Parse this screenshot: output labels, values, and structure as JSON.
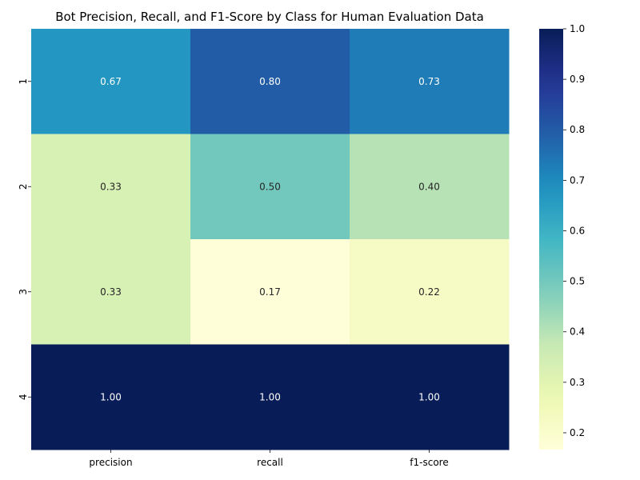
{
  "chart_data": {
    "type": "heatmap",
    "title": "Bot Precision, Recall, and F1-Score by Class for Human Evaluation Data",
    "xlabel": "",
    "ylabel": "",
    "columns": [
      "precision",
      "recall",
      "f1-score"
    ],
    "rows": [
      "1",
      "2",
      "3",
      "4"
    ],
    "values": [
      [
        0.67,
        0.8,
        0.73
      ],
      [
        0.33,
        0.5,
        0.4
      ],
      [
        0.33,
        0.17,
        0.22
      ],
      [
        1.0,
        1.0,
        1.0
      ]
    ],
    "value_format": "0.00",
    "colormap": "YlGnBu",
    "colorbar": {
      "min": 0.1667,
      "max": 1.0,
      "ticks": [
        "0.2",
        "0.3",
        "0.4",
        "0.5",
        "0.6",
        "0.7",
        "0.8",
        "0.9",
        "1.0"
      ]
    }
  }
}
